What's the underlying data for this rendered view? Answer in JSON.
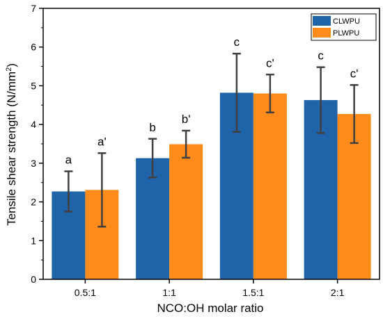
{
  "chart_data": {
    "type": "bar",
    "xlabel": "NCO:OH molar ratio",
    "ylabel_main": "Tensile shear strength (N/mm",
    "ylabel_sup": "2",
    "ylabel_end": ")",
    "categories": [
      "0.5:1",
      "1:1",
      "1.5:1",
      "2:1"
    ],
    "ylim": [
      0,
      7
    ],
    "yticks": [
      "0",
      "1",
      "2",
      "3",
      "4",
      "5",
      "6",
      "7"
    ],
    "grid": false,
    "legend_position": "top-right",
    "series": [
      {
        "name": "CLWPU",
        "color": "#1f63a8",
        "values": [
          2.27,
          3.13,
          4.82,
          4.63
        ],
        "errors": [
          0.52,
          0.5,
          1.01,
          0.85
        ],
        "sig_labels": [
          "a",
          "b",
          "c",
          "c"
        ]
      },
      {
        "name": "PLWPU",
        "color": "#ff8c1a",
        "values": [
          2.31,
          3.49,
          4.8,
          4.27
        ],
        "errors": [
          0.95,
          0.35,
          0.49,
          0.75
        ],
        "sig_labels": [
          "a'",
          "b'",
          "c'",
          "c'"
        ]
      }
    ]
  }
}
